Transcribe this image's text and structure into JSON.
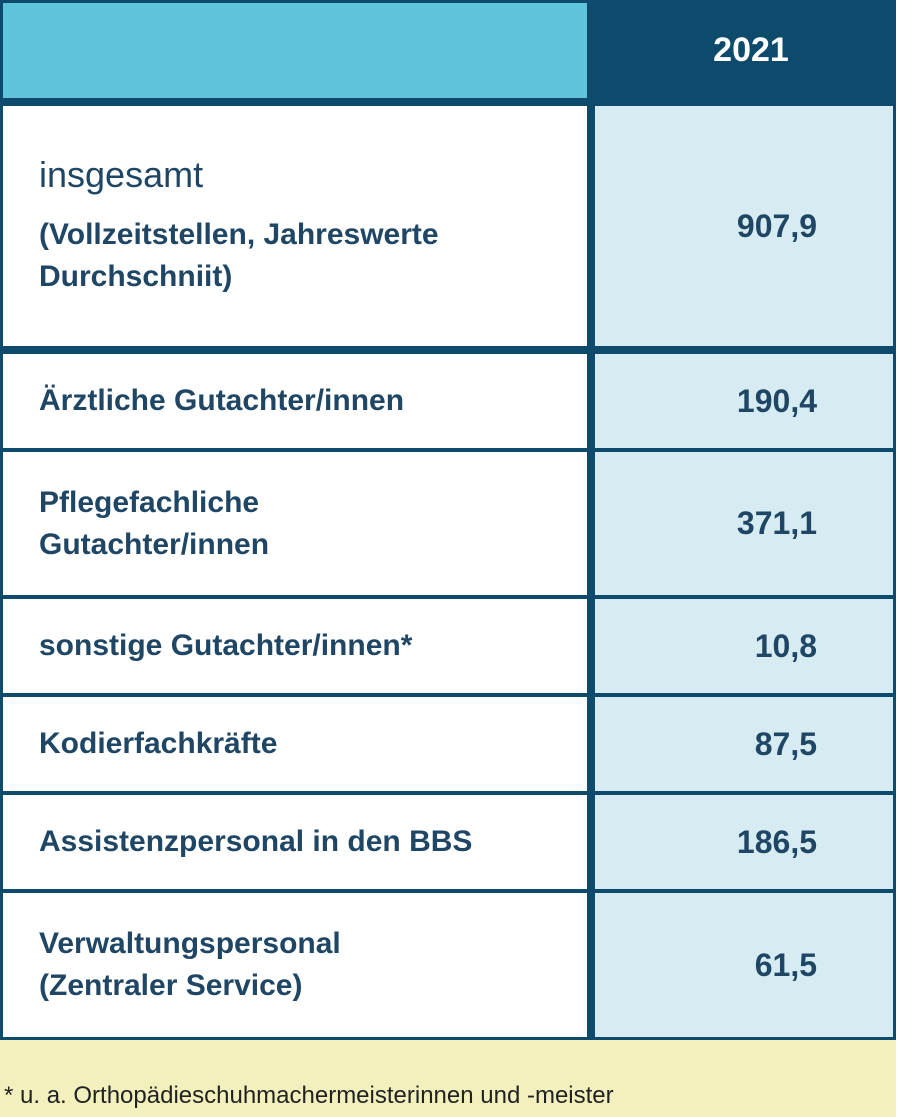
{
  "table": {
    "header": {
      "year": "2021"
    },
    "total": {
      "label": "insgesamt",
      "sublabel_line1": "(Vollzeitstellen, Jahreswerte",
      "sublabel_line2": "Durchschniit)",
      "value": "907,9"
    },
    "rows": [
      {
        "label_line1": "Ärztliche Gutachter/innen",
        "label_line2": "",
        "value": "190,4"
      },
      {
        "label_line1": "Pflegefachliche",
        "label_line2": "Gutachter/innen",
        "value": "371,1"
      },
      {
        "label_line1": "sonstige Gutachter/innen*",
        "label_line2": "",
        "value": "10,8"
      },
      {
        "label_line1": "Kodierfachkräfte",
        "label_line2": "",
        "value": "87,5"
      },
      {
        "label_line1": "Assistenzpersonal in den BBS",
        "label_line2": "",
        "value": "186,5"
      },
      {
        "label_line1": "Verwaltungspersonal",
        "label_line2": "(Zentraler Service)",
        "value": "61,5"
      }
    ]
  },
  "footnote": "* u. a. Orthopädieschuhmachermeisterinnen und -meister",
  "colors": {
    "header_left": "#5fc3dc",
    "header_right": "#0d4a6b",
    "value_cell": "#d6ecf2",
    "text": "#1f4664",
    "footnote_bg": "#f2f1bd"
  }
}
